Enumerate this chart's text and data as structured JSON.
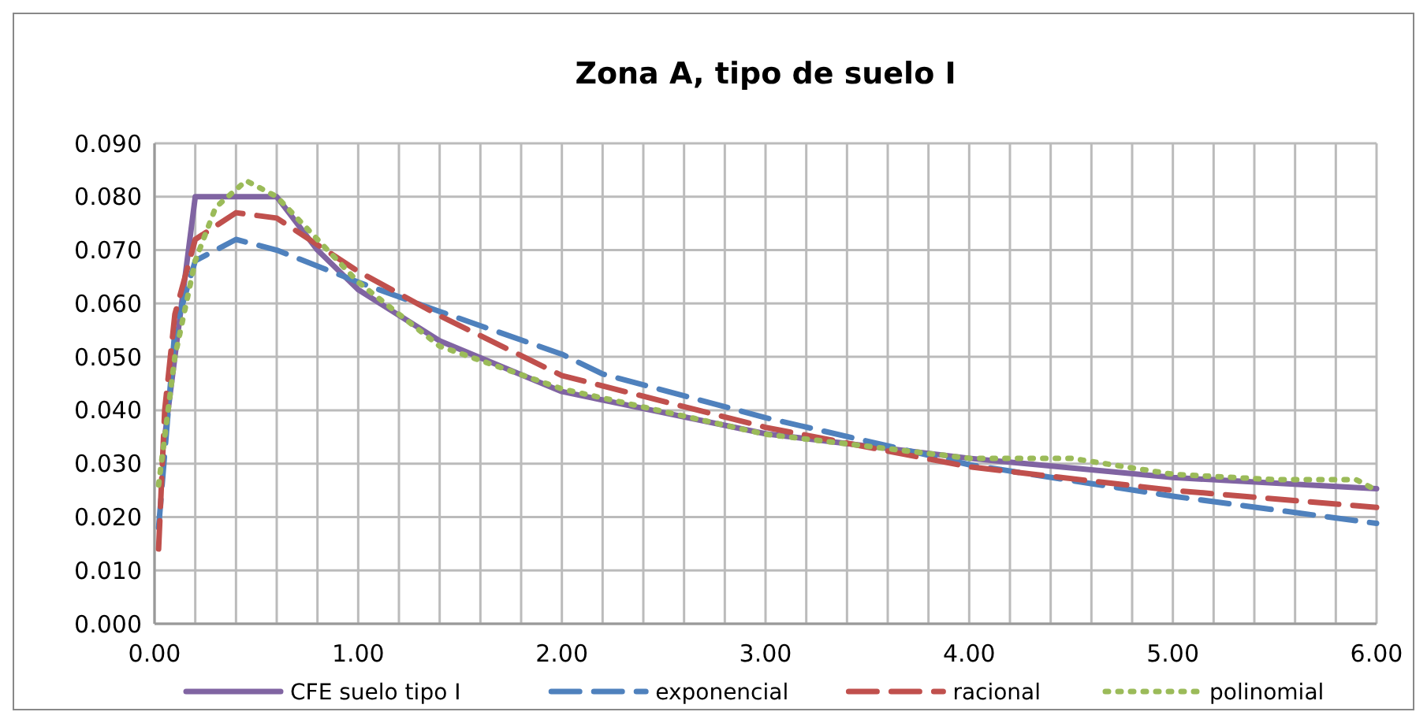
{
  "chart_data": {
    "type": "line",
    "title": "Zona A, tipo de suelo I",
    "xlim": [
      0,
      6
    ],
    "ylim": [
      0,
      0.09
    ],
    "xticks": [
      {
        "value": 0,
        "label": "0.00"
      },
      {
        "value": 0.2,
        "label": null
      },
      {
        "value": 0.4,
        "label": null
      },
      {
        "value": 0.6,
        "label": null
      },
      {
        "value": 0.8,
        "label": null
      },
      {
        "value": 1,
        "label": "1.00"
      },
      {
        "value": 1.2,
        "label": null
      },
      {
        "value": 1.4,
        "label": null
      },
      {
        "value": 1.6,
        "label": null
      },
      {
        "value": 1.8,
        "label": null
      },
      {
        "value": 2,
        "label": "2.00"
      },
      {
        "value": 2.2,
        "label": null
      },
      {
        "value": 2.4,
        "label": null
      },
      {
        "value": 2.6,
        "label": null
      },
      {
        "value": 2.8,
        "label": null
      },
      {
        "value": 3,
        "label": "3.00"
      },
      {
        "value": 3.2,
        "label": null
      },
      {
        "value": 3.4,
        "label": null
      },
      {
        "value": 3.6,
        "label": null
      },
      {
        "value": 3.8,
        "label": null
      },
      {
        "value": 4,
        "label": "4.00"
      },
      {
        "value": 4.2,
        "label": null
      },
      {
        "value": 4.4,
        "label": null
      },
      {
        "value": 4.6,
        "label": null
      },
      {
        "value": 4.8,
        "label": null
      },
      {
        "value": 5,
        "label": "5.00"
      },
      {
        "value": 5.2,
        "label": null
      },
      {
        "value": 5.4,
        "label": null
      },
      {
        "value": 5.6,
        "label": null
      },
      {
        "value": 5.8,
        "label": null
      },
      {
        "value": 6,
        "label": "6.00"
      }
    ],
    "yticks": [
      {
        "value": 0,
        "label": "0.000"
      },
      {
        "value": 0.01,
        "label": "0.010"
      },
      {
        "value": 0.02,
        "label": "0.020"
      },
      {
        "value": 0.03,
        "label": "0.030"
      },
      {
        "value": 0.04,
        "label": "0.040"
      },
      {
        "value": 0.05,
        "label": "0.050"
      },
      {
        "value": 0.06,
        "label": "0.060"
      },
      {
        "value": 0.07,
        "label": "0.070"
      },
      {
        "value": 0.08,
        "label": "0.080"
      },
      {
        "value": 0.09,
        "label": "0.090"
      }
    ],
    "grid": true,
    "legend": "bottom",
    "series": [
      {
        "name": "CFE suelo tipo I",
        "color": "#8064a2",
        "line_style": "solid",
        "x": [
          0.05,
          0.2,
          0.6,
          0.8,
          1,
          1.4,
          2,
          3,
          4,
          5,
          6
        ],
        "values": [
          0.035,
          0.08,
          0.08,
          0.07,
          0.0626,
          0.053,
          0.0435,
          0.0356,
          0.031,
          0.0274,
          0.0253
        ]
      },
      {
        "name": "exponencial",
        "color": "#4f81bd",
        "line_style": "dashed",
        "x": [
          0.02,
          0.1,
          0.2,
          0.4,
          0.6,
          1,
          1.4,
          2,
          2.2,
          3,
          4,
          5,
          6
        ],
        "values": [
          0.018,
          0.055,
          0.068,
          0.072,
          0.07,
          0.064,
          0.0585,
          0.0505,
          0.0468,
          0.0386,
          0.0298,
          0.0239,
          0.0188
        ]
      },
      {
        "name": "racional",
        "color": "#c0504d",
        "line_style": "dashed",
        "x": [
          0.02,
          0.05,
          0.1,
          0.2,
          0.4,
          0.6,
          1,
          1.4,
          2,
          3,
          4,
          5,
          6
        ],
        "values": [
          0.014,
          0.04,
          0.058,
          0.072,
          0.077,
          0.076,
          0.066,
          0.0577,
          0.0465,
          0.0368,
          0.0294,
          0.025,
          0.0218
        ]
      },
      {
        "name": "polinomial",
        "color": "#9bbb59",
        "line_style": "dotted",
        "x": [
          0.02,
          0.1,
          0.2,
          0.3,
          0.45,
          0.6,
          0.8,
          1,
          1.4,
          2,
          3,
          4,
          4.5,
          5,
          5.5,
          5.9,
          6
        ],
        "values": [
          0.026,
          0.05,
          0.068,
          0.078,
          0.083,
          0.08,
          0.072,
          0.064,
          0.052,
          0.044,
          0.0355,
          0.031,
          0.031,
          0.028,
          0.027,
          0.027,
          0.025
        ]
      }
    ]
  }
}
